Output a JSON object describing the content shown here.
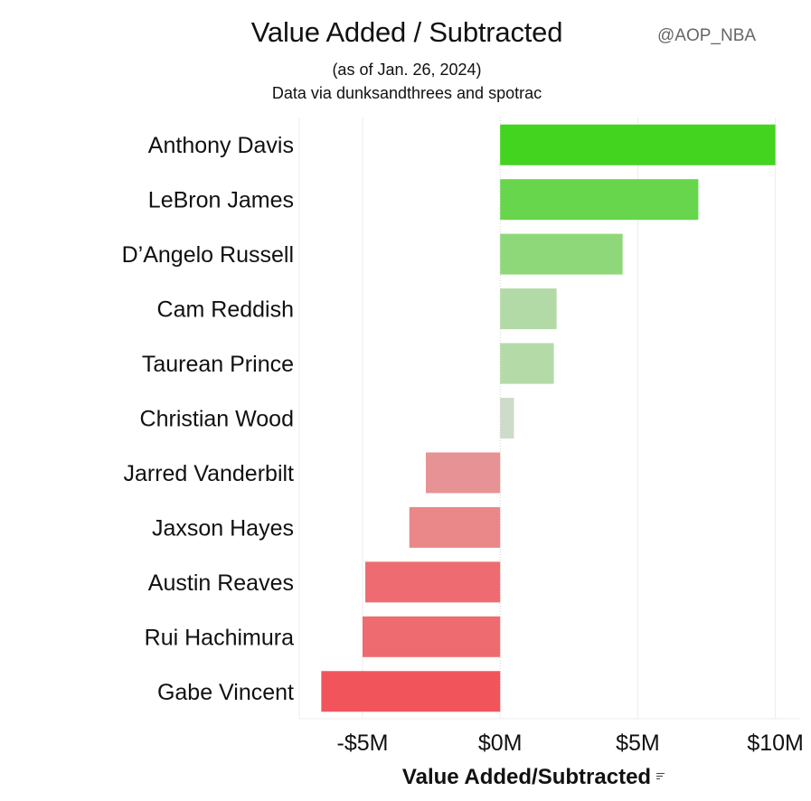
{
  "header": {
    "title": "Value Added / Subtracted",
    "subtitle_line1": "(as of Jan. 26, 2024)",
    "subtitle_line2": "Data via dunksandthrees and spotrac",
    "watermark": "@AOP_NBA"
  },
  "chart_data": {
    "type": "bar",
    "orientation": "horizontal",
    "title": "Value Added / Subtracted",
    "subtitle": "(as of Jan. 26, 2024) Data via dunksandthrees and spotrac",
    "xlabel": "Value Added/Subtracted",
    "ylabel": "",
    "unit": "USD millions",
    "xlim": [
      -7.3,
      10.9
    ],
    "xticks": [
      -5,
      0,
      5,
      10
    ],
    "xtick_labels": [
      "-$5M",
      "$0M",
      "$5M",
      "$10M"
    ],
    "grid": "vertical gridlines at ticks",
    "legend": "none",
    "color_scale": {
      "positive_max": "#42d41f",
      "neutral": "#dadcd6",
      "negative_max": "#f2545b"
    },
    "categories": [
      "Anthony Davis",
      "LeBron James",
      "D’Angelo Russell",
      "Cam Reddish",
      "Taurean Prince",
      "Christian Wood",
      "Jarred Vanderbilt",
      "Jaxson Hayes",
      "Austin Reaves",
      "Rui Hachimura",
      "Gabe Vincent"
    ],
    "values": [
      10.0,
      7.2,
      4.45,
      2.05,
      1.95,
      0.5,
      -2.7,
      -3.3,
      -4.9,
      -5.0,
      -6.5
    ]
  }
}
